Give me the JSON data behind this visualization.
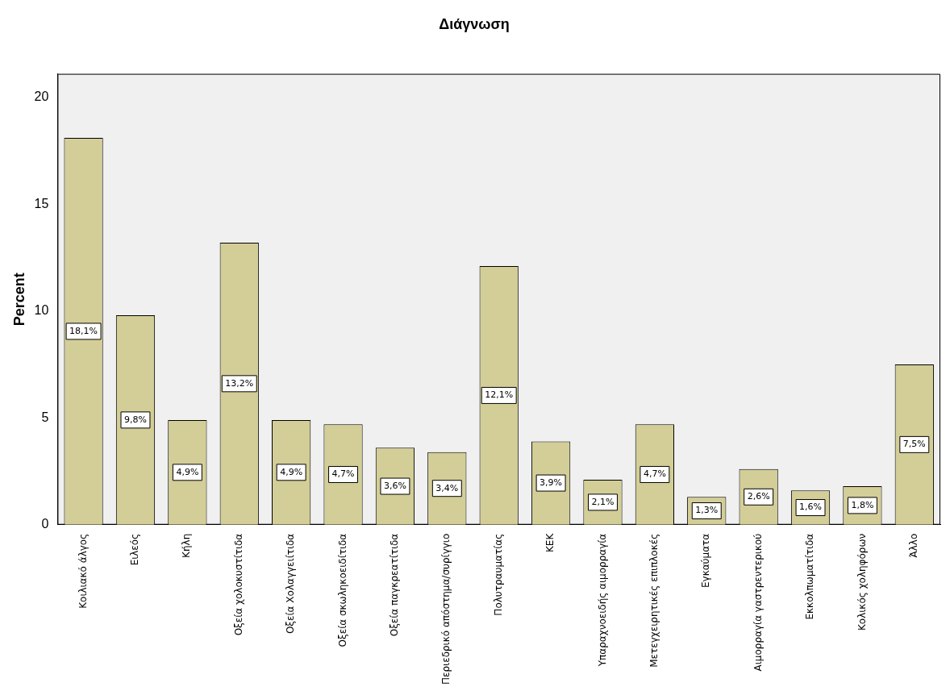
{
  "chart_data": {
    "type": "bar",
    "title": "Διάγνωση",
    "ylabel": "Percent",
    "categories": [
      "Κοιλιακό άλγος",
      "Ειλεός",
      "Κήλη",
      "Οξεία χολοκυστίτιδα",
      "Οξεία Χολαγγειίτιδα",
      "Οξεία σκωληκοειδίτιδα",
      "Οξεία παγκρεατίτιδα",
      "Περιεδρικό απόστημα/συρίγγιο",
      "Πολυτραυματίας",
      "ΚΕΚ",
      "Υπαραχνοειδής αιμορραγία",
      "Μετεγχειρητικές επιπλοκές",
      "Εγκαύματα",
      "Αιμορραγία γαστρεντερικού",
      "Εκκολπωματίτιδα",
      "Κολικός χοληφόρων",
      "Άλλο"
    ],
    "values": [
      18.1,
      9.8,
      4.9,
      13.2,
      4.9,
      4.7,
      3.6,
      3.4,
      12.1,
      3.9,
      2.1,
      4.7,
      1.3,
      2.6,
      1.6,
      1.8,
      7.5
    ],
    "value_labels": [
      "18,1%",
      "9,8%",
      "4,9%",
      "13,2%",
      "4,9%",
      "4,7%",
      "3,6%",
      "3,4%",
      "12,1%",
      "3,9%",
      "2,1%",
      "4,7%",
      "1,3%",
      "2,6%",
      "1,6%",
      "1,8%",
      "7,5%"
    ],
    "color": "#d3ce97",
    "ylim": [
      0,
      21.1
    ],
    "yticks": [
      0,
      5,
      10,
      15,
      20
    ],
    "grid": false,
    "legend": false
  }
}
